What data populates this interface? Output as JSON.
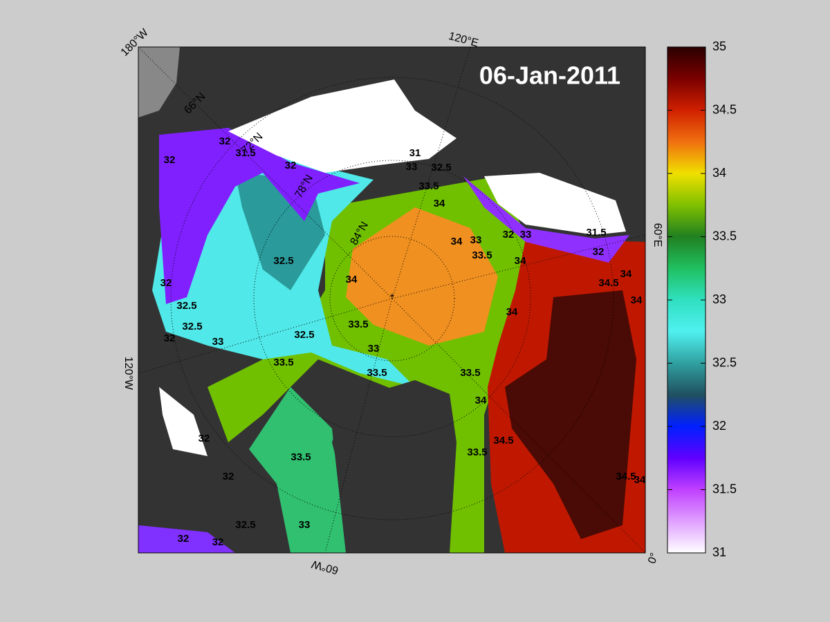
{
  "title": "06-Jan-2011",
  "longitude_labels": [
    "180°W",
    "120°E",
    "60°E",
    "0°",
    "60°W",
    "120°W"
  ],
  "latitude_labels": [
    "66°N",
    "72°N",
    "78°N",
    "84°N"
  ],
  "contour_labels": [
    "32",
    "31.5",
    "32",
    "31",
    "33",
    "32.5",
    "32",
    "33.5",
    "34",
    "34",
    "33",
    "32",
    "33",
    "31.5",
    "32",
    "34",
    "33.5",
    "34.5",
    "34",
    "34",
    "32.5",
    "34",
    "32",
    "32.5",
    "32.5",
    "32",
    "33",
    "32.5",
    "33.5",
    "33",
    "33.5",
    "33.5",
    "34",
    "33.5",
    "34",
    "34.5",
    "33.5",
    "33.5",
    "34.5",
    "34",
    "33",
    "32.5",
    "32",
    "32",
    "32",
    "32"
  ],
  "colorbar": {
    "lim": [
      31,
      35
    ],
    "ticks": [
      31,
      31.5,
      32,
      32.5,
      33,
      33.5,
      34,
      34.5,
      35
    ]
  }
}
